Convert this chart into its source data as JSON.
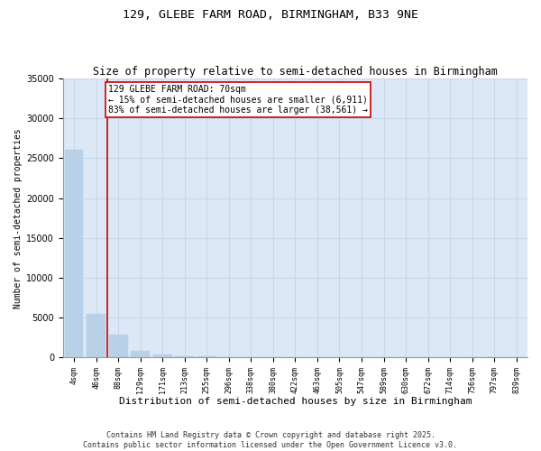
{
  "title_line1": "129, GLEBE FARM ROAD, BIRMINGHAM, B33 9NE",
  "title_line2": "Size of property relative to semi-detached houses in Birmingham",
  "xlabel": "Distribution of semi-detached houses by size in Birmingham",
  "ylabel": "Number of semi-detached properties",
  "bar_labels": [
    "4sqm",
    "46sqm",
    "88sqm",
    "129sqm",
    "171sqm",
    "213sqm",
    "255sqm",
    "296sqm",
    "338sqm",
    "380sqm",
    "422sqm",
    "463sqm",
    "505sqm",
    "547sqm",
    "589sqm",
    "630sqm",
    "672sqm",
    "714sqm",
    "756sqm",
    "797sqm",
    "839sqm"
  ],
  "bar_values": [
    26100,
    5500,
    2800,
    800,
    300,
    130,
    70,
    40,
    25,
    15,
    10,
    7,
    5,
    4,
    3,
    2,
    2,
    1,
    1,
    1,
    0
  ],
  "bar_color": "#b8d0e8",
  "bar_edge_color": "#b8d0e8",
  "grid_color": "#c8d8e8",
  "background_color": "#dce8f5",
  "ylim": [
    0,
    35000
  ],
  "yticks": [
    0,
    5000,
    10000,
    15000,
    20000,
    25000,
    30000,
    35000
  ],
  "property_line_x": 1.5,
  "property_line_color": "#cc0000",
  "annotation_text": "129 GLEBE FARM ROAD: 70sqm\n← 15% of semi-detached houses are smaller (6,911)\n83% of semi-detached houses are larger (38,561) →",
  "annotation_box_color": "#ffffff",
  "annotation_box_edge_color": "#cc0000",
  "footnote": "Contains HM Land Registry data © Crown copyright and database right 2025.\nContains public sector information licensed under the Open Government Licence v3.0.",
  "title_fontsize": 9.5,
  "subtitle_fontsize": 8.5,
  "annotation_fontsize": 7,
  "footnote_fontsize": 6,
  "ylabel_fontsize": 7,
  "xlabel_fontsize": 8,
  "ytick_fontsize": 7,
  "xtick_fontsize": 6
}
